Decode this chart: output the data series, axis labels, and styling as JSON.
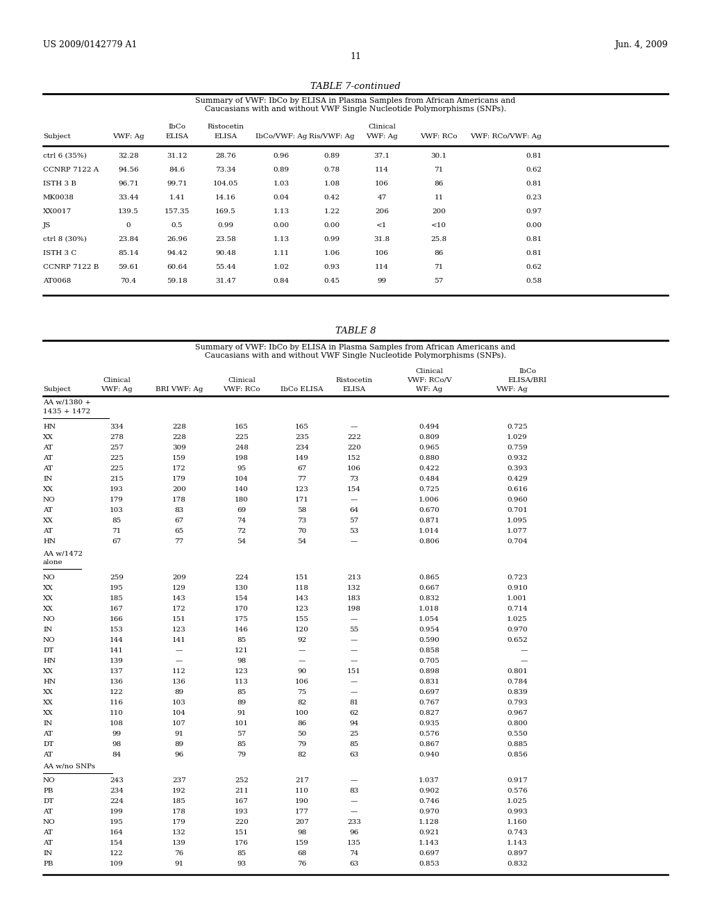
{
  "header_left": "US 2009/0142779 A1",
  "header_right": "Jun. 4, 2009",
  "page_number": "11",
  "table7_title": "TABLE 7-continued",
  "table7_subtitle": "Summary of VWF: IbCo by ELISA in Plasma Samples from African Americans and\nCaucasians with and without VWF Single Nucleotide Polymorphisms (SNPs).",
  "table7_data": [
    [
      "ctrl 6 (35%)",
      "32.28",
      "31.12",
      "28.76",
      "0.96",
      "0.89",
      "37.1",
      "30.1",
      "0.81"
    ],
    [
      "CCNRP 7122 A",
      "94.56",
      "84.6",
      "73.34",
      "0.89",
      "0.78",
      "114",
      "71",
      "0.62"
    ],
    [
      "ISTH 3 B",
      "96.71",
      "99.71",
      "104.05",
      "1.03",
      "1.08",
      "106",
      "86",
      "0.81"
    ],
    [
      "MK0038",
      "33.44",
      "1.41",
      "14.16",
      "0.04",
      "0.42",
      "47",
      "11",
      "0.23"
    ],
    [
      "XX0017",
      "139.5",
      "157.35",
      "169.5",
      "1.13",
      "1.22",
      "206",
      "200",
      "0.97"
    ],
    [
      "JS",
      "0",
      "0.5",
      "0.99",
      "0.00",
      "0.00",
      "<1",
      "<10",
      "0.00"
    ],
    [
      "ctrl 8 (30%)",
      "23.84",
      "26.96",
      "23.58",
      "1.13",
      "0.99",
      "31.8",
      "25.8",
      "0.81"
    ],
    [
      "ISTH 3 C",
      "85.14",
      "94.42",
      "90.48",
      "1.11",
      "1.06",
      "106",
      "86",
      "0.81"
    ],
    [
      "CCNRP 7122 B",
      "59.61",
      "60.64",
      "55.44",
      "1.02",
      "0.93",
      "114",
      "71",
      "0.62"
    ],
    [
      "AT0068",
      "70.4",
      "59.18",
      "31.47",
      "0.84",
      "0.45",
      "99",
      "57",
      "0.58"
    ]
  ],
  "table8_title": "TABLE 8",
  "table8_subtitle": "Summary of VWF: IbCo by ELISA in Plasma Samples from African Americans and\nCaucasians with and without VWF Single Nucleotide Polymorphisms (SNPs).",
  "table8_section1": [
    [
      "HN",
      "334",
      "228",
      "165",
      "165",
      "—",
      "0.494",
      "0.725"
    ],
    [
      "XX",
      "278",
      "228",
      "225",
      "235",
      "222",
      "0.809",
      "1.029"
    ],
    [
      "AT",
      "257",
      "309",
      "248",
      "234",
      "220",
      "0.965",
      "0.759"
    ],
    [
      "AT",
      "225",
      "159",
      "198",
      "149",
      "152",
      "0.880",
      "0.932"
    ],
    [
      "AT",
      "225",
      "172",
      "95",
      "67",
      "106",
      "0.422",
      "0.393"
    ],
    [
      "IN",
      "215",
      "179",
      "104",
      "77",
      "73",
      "0.484",
      "0.429"
    ],
    [
      "XX",
      "193",
      "200",
      "140",
      "123",
      "154",
      "0.725",
      "0.616"
    ],
    [
      "NO",
      "179",
      "178",
      "180",
      "171",
      "—",
      "1.006",
      "0.960"
    ],
    [
      "AT",
      "103",
      "83",
      "69",
      "58",
      "64",
      "0.670",
      "0.701"
    ],
    [
      "XX",
      "85",
      "67",
      "74",
      "73",
      "57",
      "0.871",
      "1.095"
    ],
    [
      "AT",
      "71",
      "65",
      "72",
      "70",
      "53",
      "1.014",
      "1.077"
    ],
    [
      "HN",
      "67",
      "77",
      "54",
      "54",
      "—",
      "0.806",
      "0.704"
    ]
  ],
  "table8_section2": [
    [
      "NO",
      "259",
      "209",
      "224",
      "151",
      "213",
      "0.865",
      "0.723"
    ],
    [
      "XX",
      "195",
      "129",
      "130",
      "118",
      "132",
      "0.667",
      "0.910"
    ],
    [
      "XX",
      "185",
      "143",
      "154",
      "143",
      "183",
      "0.832",
      "1.001"
    ],
    [
      "XX",
      "167",
      "172",
      "170",
      "123",
      "198",
      "1.018",
      "0.714"
    ],
    [
      "NO",
      "166",
      "151",
      "175",
      "155",
      "—",
      "1.054",
      "1.025"
    ],
    [
      "IN",
      "153",
      "123",
      "146",
      "120",
      "55",
      "0.954",
      "0.970"
    ],
    [
      "NO",
      "144",
      "141",
      "85",
      "92",
      "—",
      "0.590",
      "0.652"
    ],
    [
      "DT",
      "141",
      "—",
      "121",
      "—",
      "—",
      "0.858",
      "—"
    ],
    [
      "HN",
      "139",
      "—",
      "98",
      "—",
      "—",
      "0.705",
      "—"
    ],
    [
      "XX",
      "137",
      "112",
      "123",
      "90",
      "151",
      "0.898",
      "0.801"
    ],
    [
      "HN",
      "136",
      "136",
      "113",
      "106",
      "—",
      "0.831",
      "0.784"
    ],
    [
      "XX",
      "122",
      "89",
      "85",
      "75",
      "—",
      "0.697",
      "0.839"
    ],
    [
      "XX",
      "116",
      "103",
      "89",
      "82",
      "81",
      "0.767",
      "0.793"
    ],
    [
      "XX",
      "110",
      "104",
      "91",
      "100",
      "62",
      "0.827",
      "0.967"
    ],
    [
      "IN",
      "108",
      "107",
      "101",
      "86",
      "94",
      "0.935",
      "0.800"
    ],
    [
      "AT",
      "99",
      "91",
      "57",
      "50",
      "25",
      "0.576",
      "0.550"
    ],
    [
      "DT",
      "98",
      "89",
      "85",
      "79",
      "85",
      "0.867",
      "0.885"
    ],
    [
      "AT",
      "84",
      "96",
      "79",
      "82",
      "63",
      "0.940",
      "0.856"
    ]
  ],
  "table8_section3": [
    [
      "NO",
      "243",
      "237",
      "252",
      "217",
      "—",
      "1.037",
      "0.917"
    ],
    [
      "PB",
      "234",
      "192",
      "211",
      "110",
      "83",
      "0.902",
      "0.576"
    ],
    [
      "DT",
      "224",
      "185",
      "167",
      "190",
      "—",
      "0.746",
      "1.025"
    ],
    [
      "AT",
      "199",
      "178",
      "193",
      "177",
      "—",
      "0.970",
      "0.993"
    ],
    [
      "NO",
      "195",
      "179",
      "220",
      "207",
      "233",
      "1.128",
      "1.160"
    ],
    [
      "AT",
      "164",
      "132",
      "151",
      "98",
      "96",
      "0.921",
      "0.743"
    ],
    [
      "AT",
      "154",
      "139",
      "176",
      "159",
      "135",
      "1.143",
      "1.143"
    ],
    [
      "IN",
      "122",
      "76",
      "85",
      "68",
      "74",
      "0.697",
      "0.897"
    ],
    [
      "PB",
      "109",
      "91",
      "93",
      "76",
      "63",
      "0.853",
      "0.832"
    ]
  ]
}
